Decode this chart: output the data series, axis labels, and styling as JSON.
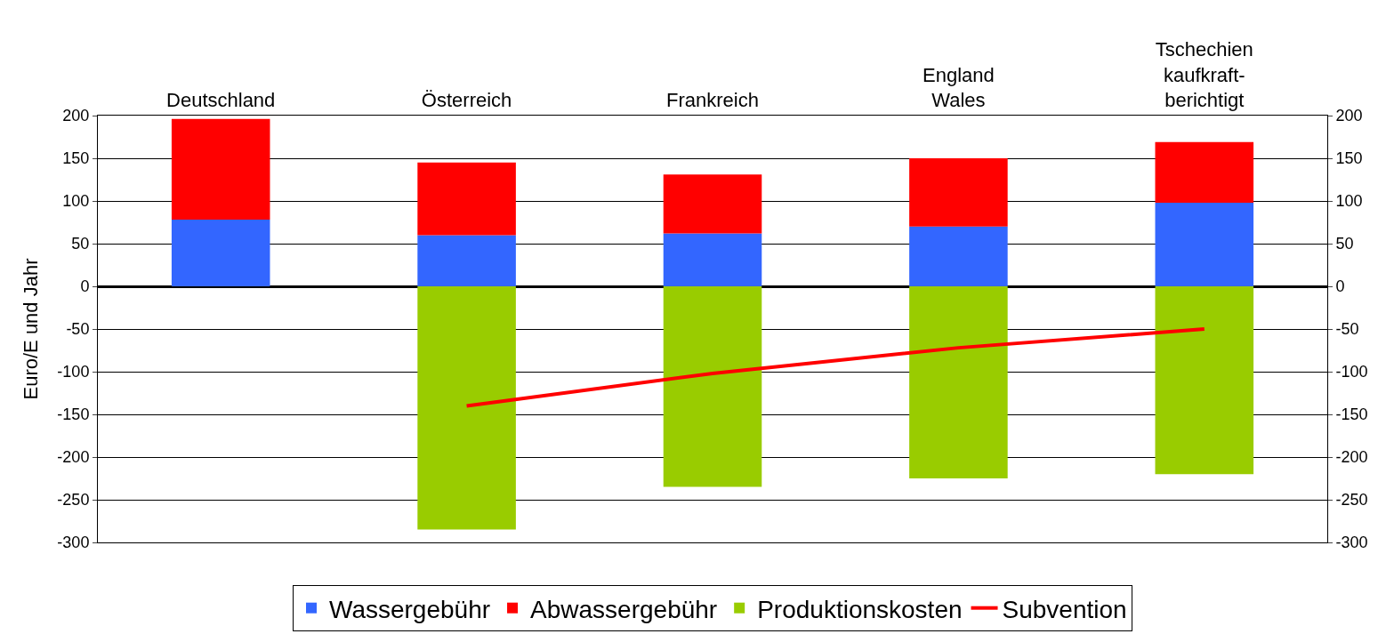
{
  "chart_data": {
    "type": "bar",
    "stacked": true,
    "ylabel": "Euro/E und Jahr",
    "categories": [
      "Deutschland",
      "Österreich",
      "Frankreich",
      "England\nWales",
      "Tschechien\nkaufkraft-\nberichtigt"
    ],
    "series": [
      {
        "name": "Wassergebühr",
        "color": "#3366ff",
        "values": [
          78,
          60,
          62,
          70,
          98
        ]
      },
      {
        "name": "Abwassergebühr",
        "color": "#ff0000",
        "values": [
          118,
          85,
          69,
          80,
          71
        ]
      },
      {
        "name": "Produktionskosten",
        "color": "#99cc00",
        "values": [
          null,
          -285,
          -235,
          -225,
          -220
        ]
      },
      {
        "name": "Subvention",
        "type": "line",
        "color": "#ff0000",
        "values": [
          null,
          -140,
          -102,
          -72,
          -50
        ]
      }
    ],
    "ylim": [
      -300,
      200
    ],
    "yticks": [
      -300,
      -250,
      -200,
      -150,
      -100,
      -50,
      0,
      50,
      100,
      150,
      200
    ],
    "y2lim": [
      -300,
      200
    ],
    "y2ticks": [
      -300,
      -250,
      -200,
      -150,
      -100,
      -50,
      0,
      50,
      100,
      150,
      200
    ],
    "grid": "y",
    "legend": "bottom",
    "marker": "none",
    "line_style": "solid"
  }
}
